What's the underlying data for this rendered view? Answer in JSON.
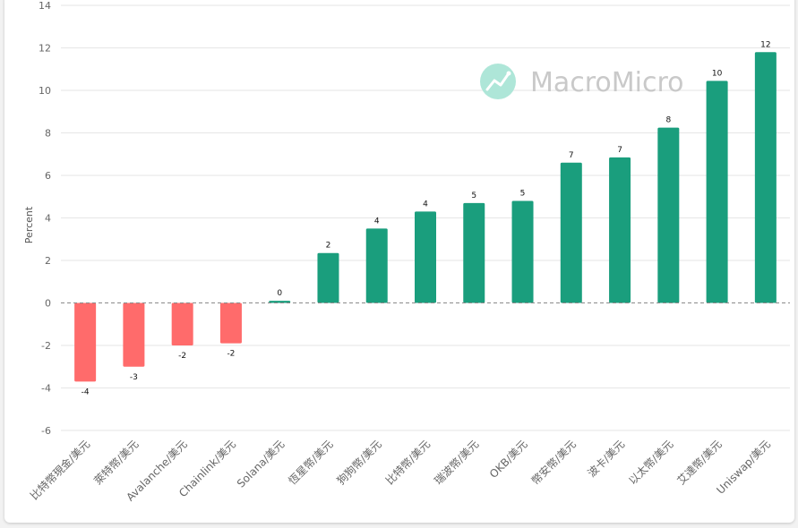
{
  "chart_data": {
    "type": "bar",
    "ylabel": "Percent",
    "ylim": [
      -6,
      14
    ],
    "yticks": [
      -6,
      -4,
      -2,
      0,
      2,
      4,
      6,
      8,
      10,
      12,
      14
    ],
    "grid": true,
    "categories": [
      "比特幣現金/美元",
      "萊特幣/美元",
      "Avalanche/美元",
      "Chainlink/美元",
      "Solana/美元",
      "恆星幣/美元",
      "狗狗幣/美元",
      "比特幣/美元",
      "瑞波幣/美元",
      "OKB/美元",
      "幣安幣/美元",
      "波卡/美元",
      "以太幣/美元",
      "艾達幣/美元",
      "Uniswap/美元"
    ],
    "values": [
      -3.7,
      -3.0,
      -2.0,
      -1.9,
      0.1,
      2.35,
      3.5,
      4.3,
      4.7,
      4.8,
      6.6,
      6.85,
      8.25,
      10.45,
      11.8
    ],
    "data_labels": [
      "-4",
      "-3",
      "-2",
      "-2",
      "0",
      "2",
      "4",
      "4",
      "5",
      "5",
      "7",
      "7",
      "8",
      "10",
      "12"
    ],
    "colors": {
      "positive": "#1a9e7d",
      "negative": "#ff6b6b"
    }
  },
  "watermark": {
    "text": "MacroMicro",
    "icon": "macromicro-logo-icon"
  }
}
